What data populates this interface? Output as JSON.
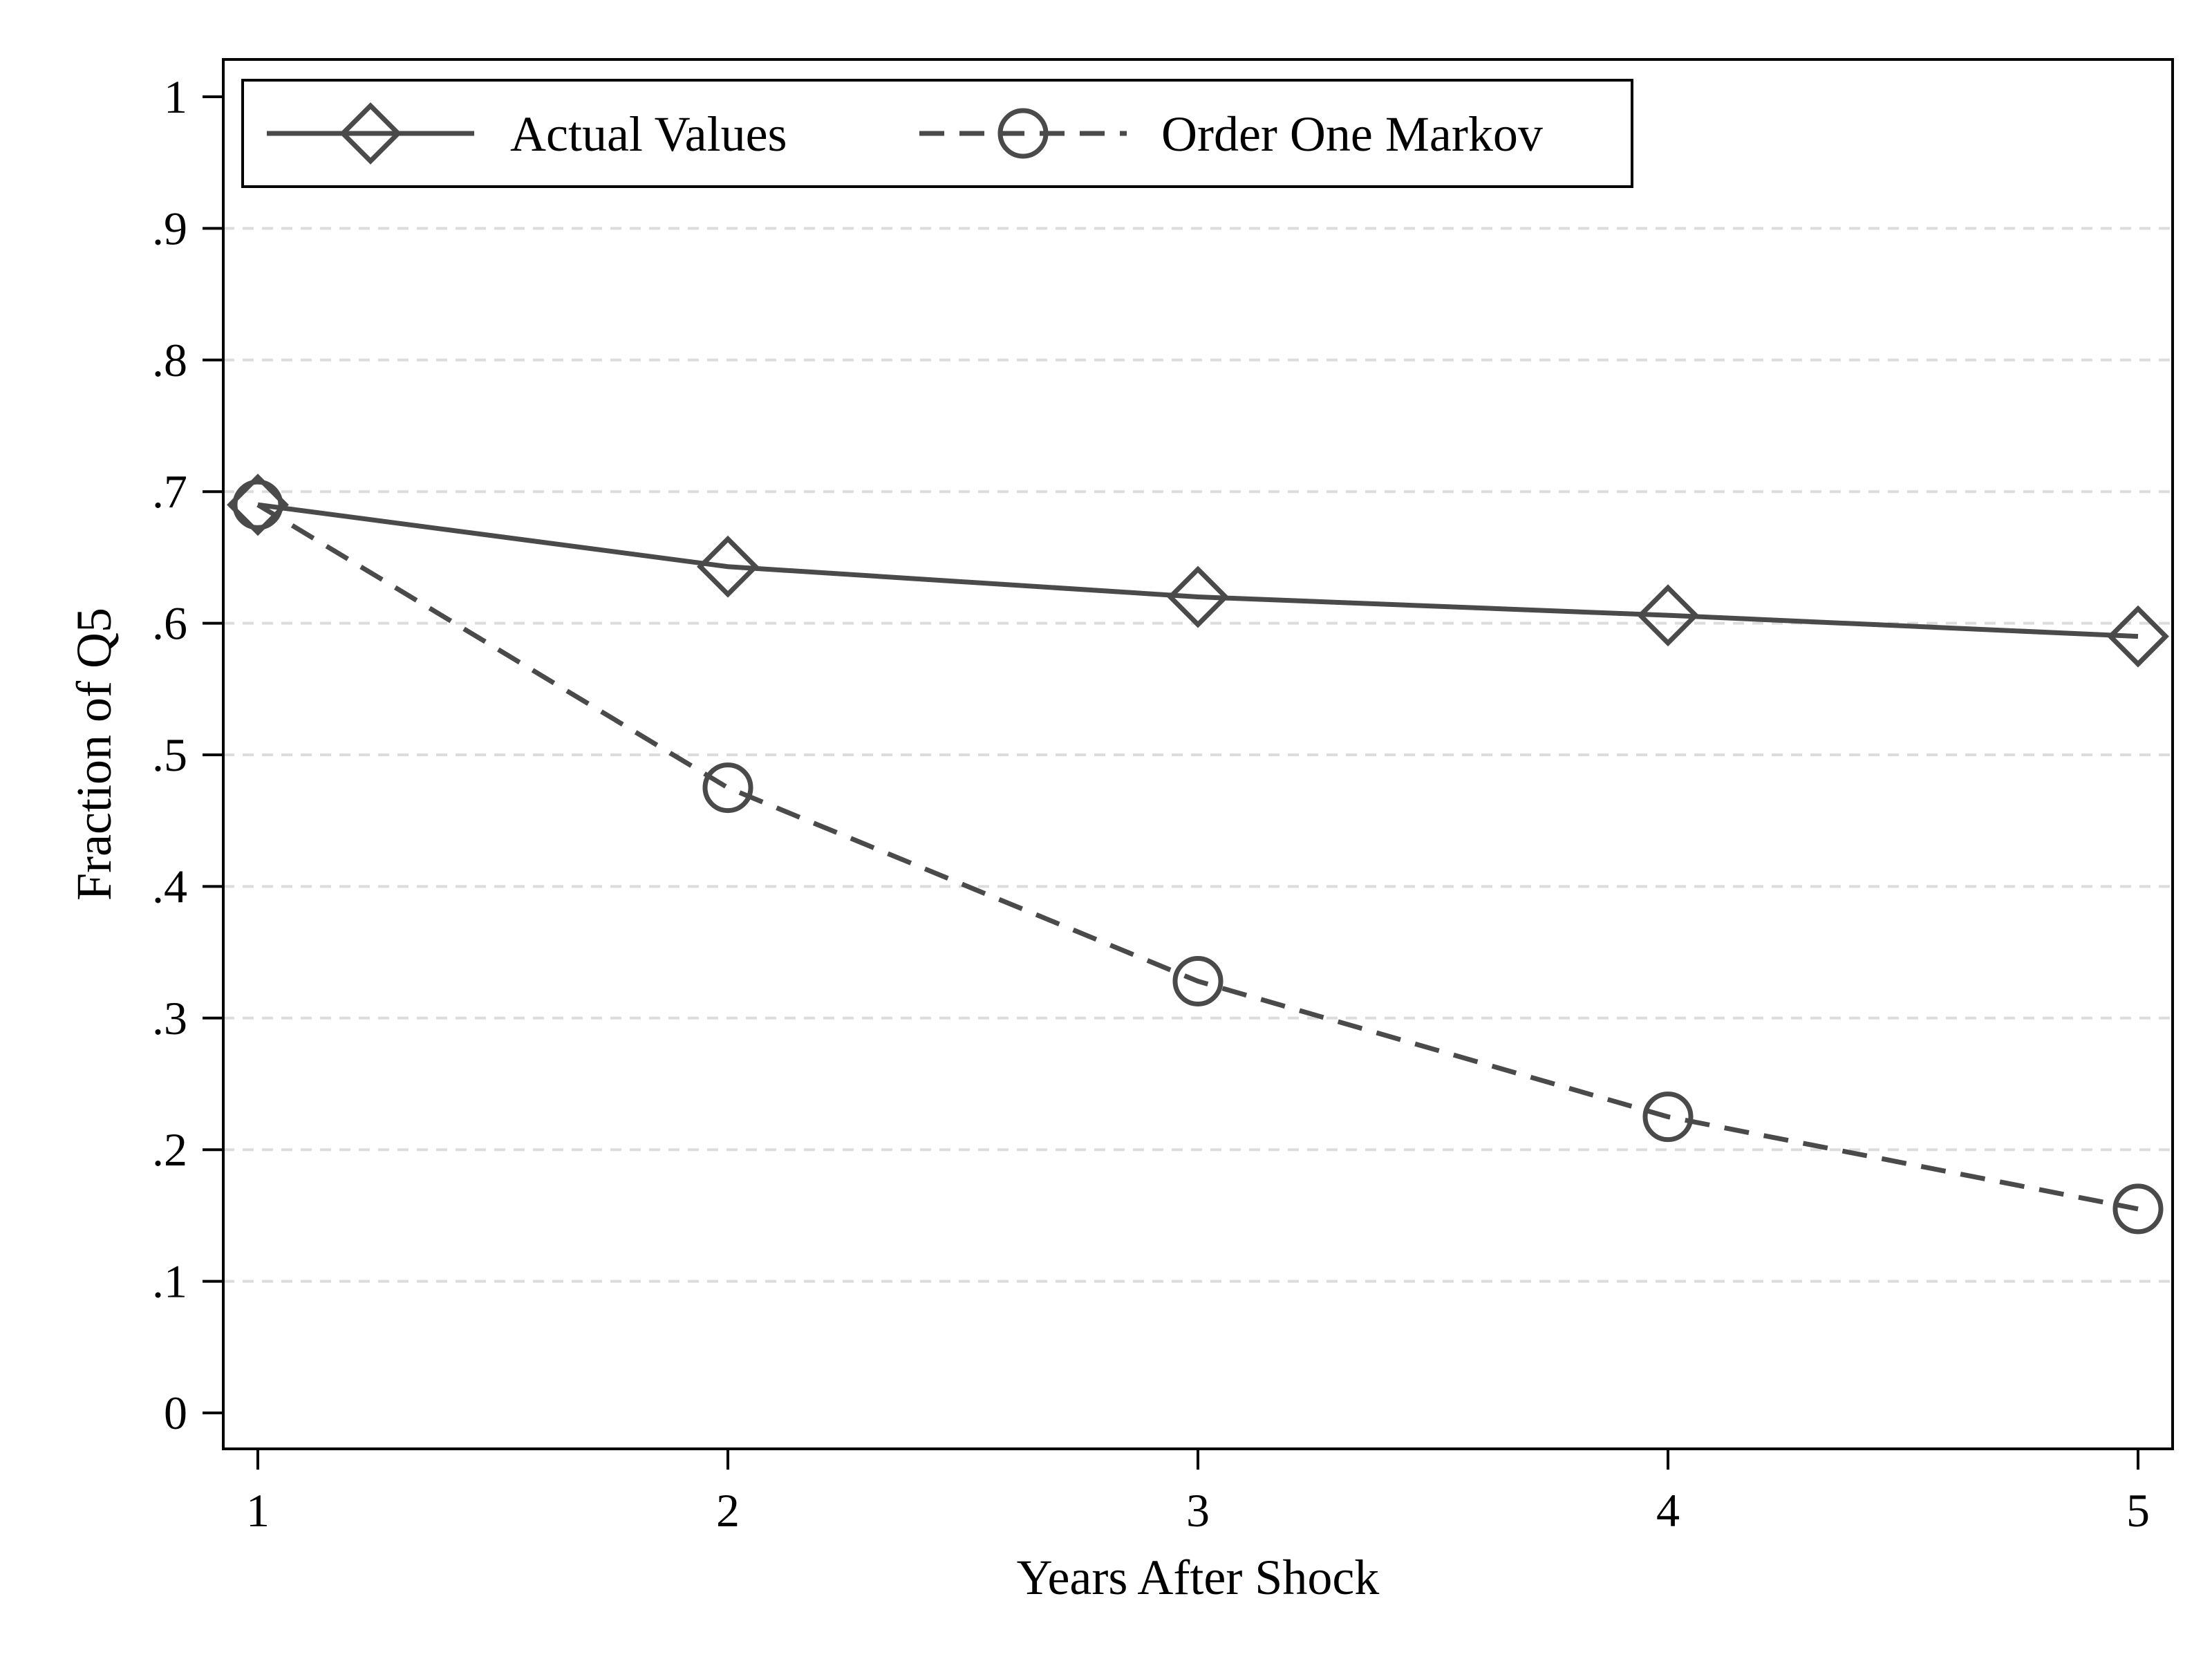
{
  "chart_data": {
    "type": "line",
    "title": "",
    "xlabel": "Years After Shock",
    "ylabel": "Fraction of Q5",
    "x": [
      1,
      2,
      3,
      4,
      5
    ],
    "x_tick_labels": [
      "1",
      "2",
      "3",
      "4",
      "5"
    ],
    "y_ticks": [
      0,
      0.1,
      0.2,
      0.3,
      0.4,
      0.5,
      0.6,
      0.7,
      0.8,
      0.9,
      1
    ],
    "y_tick_labels": [
      "0",
      ".1",
      ".2",
      ".3",
      ".4",
      ".5",
      ".6",
      ".7",
      ".8",
      ".9",
      "1"
    ],
    "xlim": [
      1,
      5
    ],
    "ylim": [
      0,
      1
    ],
    "grid": true,
    "legend_position": "top-left",
    "series": [
      {
        "name": "Actual Values",
        "values": [
          0.69,
          0.643,
          0.62,
          0.606,
          0.59
        ],
        "line_style": "solid",
        "marker": "diamond",
        "color": "#4a4a4a"
      },
      {
        "name": "Order One Markov",
        "values": [
          0.69,
          0.475,
          0.328,
          0.225,
          0.155
        ],
        "line_style": "dashed",
        "marker": "circle",
        "color": "#4a4a4a"
      }
    ]
  }
}
